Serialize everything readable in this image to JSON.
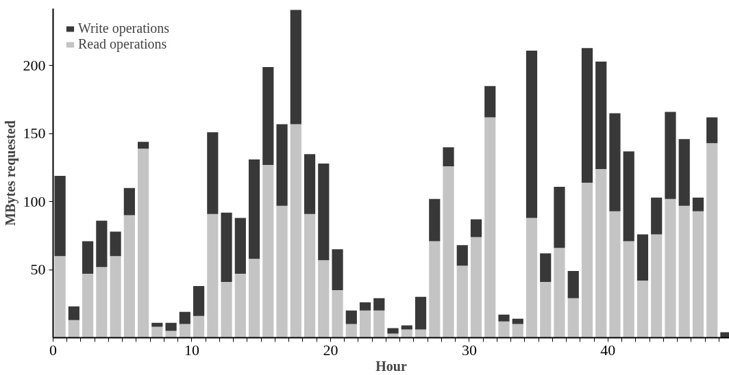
{
  "chart_data": {
    "type": "bar",
    "stacked": true,
    "xlabel": "Hour",
    "ylabel": "MBytes requested",
    "x": [
      0.5,
      1.5,
      2.5,
      3.5,
      4.5,
      5.5,
      6.5,
      7.5,
      8.5,
      9.5,
      10.5,
      11.5,
      12.5,
      13.5,
      14.5,
      15.5,
      16.5,
      17.5,
      18.5,
      19.5,
      20.5,
      21.5,
      22.5,
      23.5,
      24.5,
      25.5,
      26.5,
      27.5,
      28.5,
      29.5,
      30.5,
      31.5,
      32.5,
      33.5,
      34.5,
      35.5,
      36.5,
      37.5,
      38.5,
      39.5,
      40.5,
      41.5,
      42.5,
      43.5,
      44.5,
      45.5,
      46.5,
      47.5,
      48.5
    ],
    "series": [
      {
        "name": "Read operations",
        "color": "#c4c4c4",
        "values": [
          60,
          13,
          47,
          52,
          60,
          90,
          139,
          8,
          5,
          10,
          16,
          91,
          41,
          47,
          58,
          127,
          97,
          157,
          91,
          57,
          35,
          10,
          20,
          20,
          3,
          6,
          6,
          71,
          126,
          53,
          74,
          162,
          12,
          10,
          88,
          41,
          66,
          29,
          114,
          124,
          93,
          71,
          42,
          76,
          102,
          97,
          93,
          143,
          null
        ]
      },
      {
        "name": "Write operations",
        "color": "#383838",
        "values": [
          59,
          10,
          24,
          34,
          18,
          20,
          5,
          3,
          6,
          9,
          22,
          60,
          51,
          41,
          73,
          72,
          60,
          84,
          44,
          71,
          30,
          10,
          6,
          9,
          4,
          3,
          24,
          31,
          14,
          15,
          13,
          23,
          5,
          4,
          123,
          21,
          45,
          20,
          99,
          79,
          72,
          66,
          34,
          27,
          64,
          49,
          10,
          19,
          4
        ]
      }
    ],
    "xlim": [
      0,
      48.75
    ],
    "ylim": [
      0,
      242
    ],
    "xticks": [
      0,
      {
        "value": 1,
        "label": null
      },
      {
        "value": 2,
        "label": null
      },
      {
        "value": 3,
        "label": null
      },
      {
        "value": 4,
        "label": null
      },
      {
        "value": 5,
        "label": null
      },
      {
        "value": 6,
        "label": null
      },
      {
        "value": 7,
        "label": null
      },
      {
        "value": 8,
        "label": null
      },
      {
        "value": 9,
        "label": null
      },
      10,
      {
        "value": 11,
        "label": null
      },
      {
        "value": 12,
        "label": null
      },
      {
        "value": 13,
        "label": null
      },
      {
        "value": 14,
        "label": null
      },
      {
        "value": 15,
        "label": null
      },
      {
        "value": 16,
        "label": null
      },
      {
        "value": 17,
        "label": null
      },
      {
        "value": 18,
        "label": null
      },
      {
        "value": 19,
        "label": null
      },
      20,
      {
        "value": 21,
        "label": null
      },
      {
        "value": 22,
        "label": null
      },
      {
        "value": 23,
        "label": null
      },
      {
        "value": 24,
        "label": null
      },
      {
        "value": 25,
        "label": null
      },
      {
        "value": 26,
        "label": null
      },
      {
        "value": 27,
        "label": null
      },
      {
        "value": 28,
        "label": null
      },
      {
        "value": 29,
        "label": null
      },
      30,
      {
        "value": 31,
        "label": null
      },
      {
        "value": 32,
        "label": null
      },
      {
        "value": 33,
        "label": null
      },
      {
        "value": 34,
        "label": null
      },
      {
        "value": 35,
        "label": null
      },
      {
        "value": 36,
        "label": null
      },
      {
        "value": 37,
        "label": null
      },
      {
        "value": 38,
        "label": null
      },
      {
        "value": 39,
        "label": null
      },
      40,
      {
        "value": 41,
        "label": null
      },
      {
        "value": 42,
        "label": null
      },
      {
        "value": 43,
        "label": null
      },
      {
        "value": 44,
        "label": null
      },
      {
        "value": 45,
        "label": null
      },
      {
        "value": 46,
        "label": null
      },
      {
        "value": 47,
        "label": null
      },
      {
        "value": 48,
        "label": null
      }
    ],
    "yticks": [
      50,
      100,
      150,
      200
    ],
    "legend": "top left",
    "grid": false
  }
}
